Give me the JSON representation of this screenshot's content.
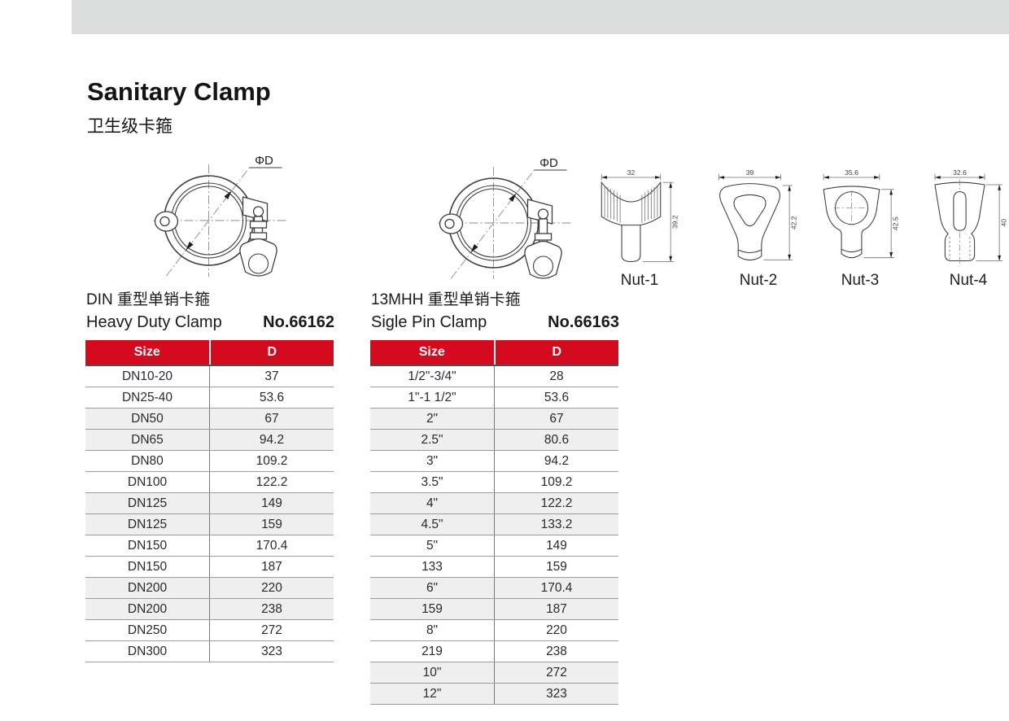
{
  "page": {
    "title": "Sanitary Clamp",
    "subtitle_zh": "卫生级卡箍"
  },
  "colors": {
    "header_red": "#d40a1e",
    "row_shade": "#efefef",
    "top_bar": "#dcdddd"
  },
  "sections": [
    {
      "heading_zh": "DIN 重型单销卡箍",
      "heading_en": "Heavy Duty Clamp",
      "part_no": "No.66162",
      "diagram_label": "ΦD",
      "table": {
        "headers": [
          "Size",
          "D"
        ],
        "rows": [
          [
            "DN10-20",
            "37"
          ],
          [
            "DN25-40",
            "53.6"
          ],
          [
            "DN50",
            "67"
          ],
          [
            "DN65",
            "94.2"
          ],
          [
            "DN80",
            "109.2"
          ],
          [
            "DN100",
            "122.2"
          ],
          [
            "DN125",
            "149"
          ],
          [
            "DN125",
            "159"
          ],
          [
            "DN150",
            "170.4"
          ],
          [
            "DN150",
            "187"
          ],
          [
            "DN200",
            "220"
          ],
          [
            "DN200",
            "238"
          ],
          [
            "DN250",
            "272"
          ],
          [
            "DN300",
            "323"
          ]
        ]
      }
    },
    {
      "heading_zh": "13MHH 重型单销卡箍",
      "heading_en": "Sigle Pin Clamp",
      "part_no": "No.66163",
      "diagram_label": "ΦD",
      "table": {
        "headers": [
          "Size",
          "D"
        ],
        "rows": [
          [
            "1/2\"-3/4\"",
            "28"
          ],
          [
            "1\"-1 1/2\"",
            "53.6"
          ],
          [
            "2\"",
            "67"
          ],
          [
            "2.5\"",
            "80.6"
          ],
          [
            "3\"",
            "94.2"
          ],
          [
            "3.5\"",
            "109.2"
          ],
          [
            "4\"",
            "122.2"
          ],
          [
            "4.5\"",
            "133.2"
          ],
          [
            "5\"",
            "149"
          ],
          [
            "133",
            "159"
          ],
          [
            "6\"",
            "170.4"
          ],
          [
            "159",
            "187"
          ],
          [
            "8\"",
            "220"
          ],
          [
            "219",
            "238"
          ],
          [
            "10\"",
            "272"
          ],
          [
            "12\"",
            "323"
          ]
        ]
      }
    }
  ],
  "nuts": [
    {
      "label": "Nut-1",
      "width_dim": "32",
      "height_dim": "39.2"
    },
    {
      "label": "Nut-2",
      "width_dim": "39",
      "height_dim": "42.2"
    },
    {
      "label": "Nut-3",
      "width_dim": "35.6",
      "height_dim": "42.5"
    },
    {
      "label": "Nut-4",
      "width_dim": "32.6",
      "height_dim": "40"
    }
  ]
}
